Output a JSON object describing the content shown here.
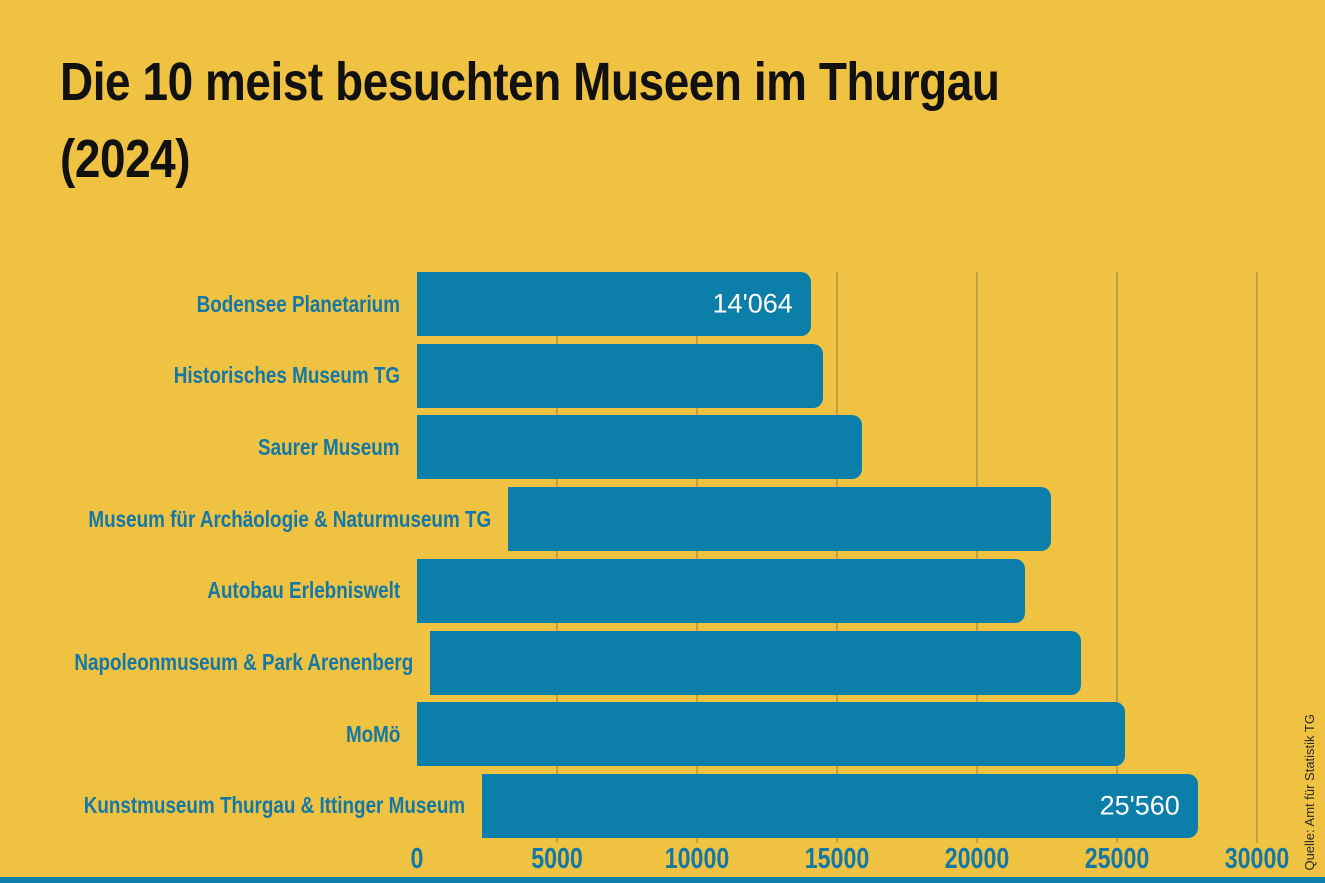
{
  "page": {
    "background_color": "#efc242",
    "accent_color": "#0b7ea9",
    "label_color": "#1478a6",
    "title_color": "#111111",
    "gridline_color": "rgba(80,80,80,0.28)",
    "value_label_color": "#ffffff"
  },
  "title": "Die 10 meist besuchten Museen im Thurgau (2024)",
  "source": "Quelle: Amt für Statistik TG",
  "chart_data": {
    "type": "bar",
    "orientation": "horizontal",
    "title": "Die 10 meist besuchten Museen im Thurgau (2024)",
    "categories": [
      "Bodensee Planetarium",
      "Historisches Museum TG",
      "Saurer Museum",
      "Museum für Archäologie & Naturmuseum TG",
      "Autobau Erlebniswelt",
      "Napoleonmuseum & Park Arenenberg",
      "MoMö",
      "Kunstmuseum Thurgau & Ittinger Museum"
    ],
    "values": [
      14064,
      14500,
      15900,
      19400,
      21700,
      23250,
      25300,
      25560
    ],
    "value_labels": [
      "14'064",
      null,
      null,
      null,
      null,
      null,
      null,
      "25'560"
    ],
    "x_ticks": [
      0,
      5000,
      10000,
      15000,
      20000,
      25000,
      30000
    ],
    "x_tick_labels": [
      "0",
      "5000",
      "10000",
      "15000",
      "20000",
      "25000",
      "30000"
    ],
    "xlim": [
      0,
      30000
    ],
    "grid": "vertical",
    "legend": "none",
    "bar_color": "#0b7ea9",
    "source": "Quelle: Amt für Statistik TG"
  }
}
